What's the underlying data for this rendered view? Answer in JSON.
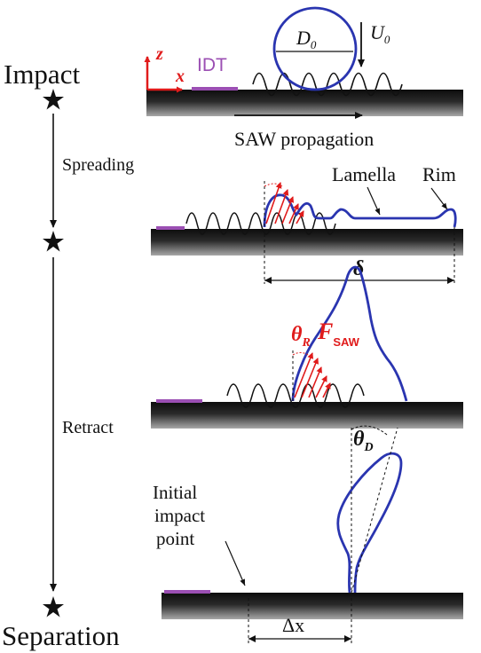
{
  "stages": {
    "impact": "Impact",
    "separation": "Separation"
  },
  "phases": {
    "spreading": "Spreading",
    "retract": "Retract"
  },
  "labels": {
    "idt": "IDT",
    "axis_z": "z",
    "axis_x": "x",
    "diameter": "D",
    "diameter_sub": "0",
    "velocity": "U",
    "velocity_sub": "0",
    "saw_propagation": "SAW propagation",
    "lamella": "Lamella",
    "rim": "Rim",
    "spread_length": "δ",
    "receding_angle": "θ",
    "receding_angle_sub": "R",
    "saw_force": "F",
    "saw_force_sub": "SAW",
    "detach_angle": "θ",
    "detach_angle_sub": "D",
    "initial_impact_line1": "Initial",
    "initial_impact_line2": "impact",
    "initial_impact_line3": "point",
    "displacement": "Δx"
  },
  "colors": {
    "droplet": "#2a35b0",
    "force_arrows": "#e01b1b",
    "idt": "#9b4fb3",
    "axes": "#e01b1b",
    "substrate_dark": "#111111",
    "substrate_light": "#9a9a9a"
  }
}
